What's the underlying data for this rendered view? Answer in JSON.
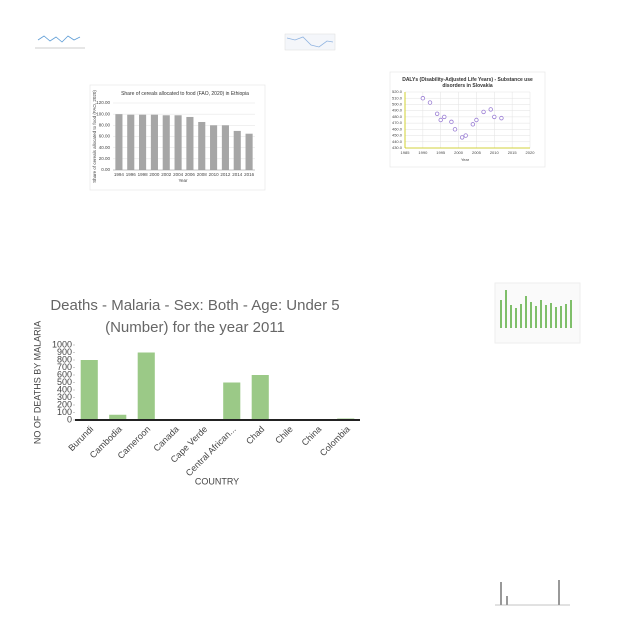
{
  "chart_data": [
    {
      "type": "bar",
      "title": "Share of cereals allocated to food (FAO, 2020) in Ethiopia",
      "y_label": "Share of cereals allocated to food (FAO, 2020)",
      "x_label": "Year",
      "categories": [
        "1994",
        "1996",
        "1998",
        "2000",
        "2002",
        "2004",
        "2006",
        "2008",
        "2010",
        "2012",
        "2014",
        "2016"
      ],
      "values": [
        100,
        99,
        99,
        99,
        98,
        98,
        95,
        86,
        80,
        80,
        70,
        65
      ],
      "color": "#a6a6a6",
      "ylim": [
        0,
        120
      ],
      "yticks": [
        {
          "value": 0,
          "label": "0.00"
        },
        {
          "value": 20,
          "label": "20.00"
        },
        {
          "value": 40,
          "label": "40.00"
        },
        {
          "value": 60,
          "label": "60.00"
        },
        {
          "value": 80,
          "label": "80.00"
        },
        {
          "value": 100,
          "label": "100.00"
        },
        {
          "value": 120,
          "label": "120.00"
        }
      ],
      "grid": true
    },
    {
      "type": "scatter",
      "title": "DALYs (Disability-Adjusted Life Years) - Substance use disorders in Slovakia",
      "x_label": "Year",
      "x": [
        1990,
        1992,
        1994,
        1995,
        1996,
        1998,
        1999,
        2001,
        2002,
        2004,
        2005,
        2007,
        2009,
        2010,
        2012
      ],
      "values": [
        510,
        503,
        485,
        475,
        480,
        472,
        460,
        447,
        450,
        468,
        475,
        488,
        492,
        480,
        478
      ],
      "color": "#9b7fd4",
      "xlim": [
        1985,
        2020
      ],
      "xticks": [
        1985,
        1990,
        1995,
        2000,
        2005,
        2010,
        2015,
        2020
      ],
      "ylim": [
        430,
        520
      ],
      "yticks": [
        {
          "value": 430,
          "label": "430.0"
        },
        {
          "value": 440,
          "label": "440.0"
        },
        {
          "value": 450,
          "label": "450.0"
        },
        {
          "value": 460,
          "label": "460.0"
        },
        {
          "value": 470,
          "label": "470.0"
        },
        {
          "value": 480,
          "label": "480.0"
        },
        {
          "value": 490,
          "label": "490.0"
        },
        {
          "value": 500,
          "label": "500.0"
        },
        {
          "value": 510,
          "label": "510.0"
        },
        {
          "value": 520,
          "label": "520.0"
        }
      ],
      "grid": true
    },
    {
      "type": "bar",
      "title": "Deaths - Malaria - Sex: Both - Age: Under 5 (Number) for the year 2011",
      "y_label": "NO OF DEATHS BY MALARIA",
      "x_label": "COUNTRY",
      "categories": [
        "Burundi",
        "Cambodia",
        "Cameroon",
        "Canada",
        "Cape Verde",
        "Central African...",
        "Chad",
        "Chile",
        "China",
        "Colombia"
      ],
      "values": [
        800,
        70,
        900,
        0,
        0,
        500,
        600,
        0,
        0,
        20
      ],
      "color": "#9bc987",
      "ylim": [
        0,
        1000
      ],
      "yticks": [
        0,
        100,
        200,
        300,
        400,
        500,
        600,
        700,
        800,
        900,
        1000
      ],
      "grid": false
    }
  ]
}
